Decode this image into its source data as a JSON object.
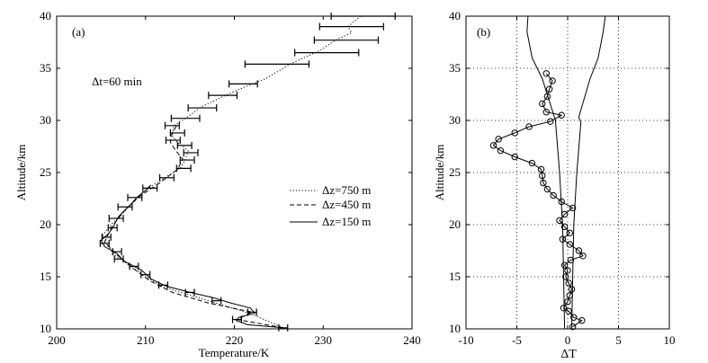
{
  "chart_data": [
    {
      "panel_label": "(a)",
      "type": "line",
      "xlabel": "Temperature/K",
      "ylabel": "Altitude/km",
      "xlim": [
        200,
        240
      ],
      "ylim": [
        10,
        40
      ],
      "xticks": [
        "200",
        "210",
        "220",
        "230",
        "240"
      ],
      "yticks": [
        "10",
        "15",
        "20",
        "25",
        "30",
        "35",
        "40"
      ],
      "grid": false,
      "annotation": "Δt=60 min",
      "legend_position": "right",
      "series": [
        {
          "name": "Δz=750 m",
          "style": "dotted",
          "points": [
            [
              225.5,
              10.1
            ],
            [
              222.0,
              11.4
            ],
            [
              219.0,
              12.2
            ],
            [
              215.5,
              13.1
            ],
            [
              212.0,
              14.0
            ],
            [
              210.0,
              15.0
            ],
            [
              208.0,
              16.2
            ],
            [
              206.6,
              17.0
            ],
            [
              205.6,
              18.2
            ],
            [
              205.2,
              19.0
            ],
            [
              206.0,
              19.9
            ],
            [
              206.8,
              20.6
            ],
            [
              207.6,
              21.2
            ],
            [
              208.5,
              22.1
            ],
            [
              209.2,
              22.7
            ],
            [
              210.5,
              23.6
            ],
            [
              212.2,
              24.5
            ],
            [
              214.0,
              25.5
            ],
            [
              214.5,
              26.3
            ],
            [
              214.8,
              27.1
            ],
            [
              213.7,
              27.8
            ],
            [
              213.0,
              28.5
            ],
            [
              213.2,
              29.5
            ],
            [
              214.5,
              30.2
            ],
            [
              216.3,
              31.3
            ],
            [
              218.5,
              32.2
            ],
            [
              220.6,
              33.0
            ],
            [
              223.5,
              34.0
            ],
            [
              226.5,
              35.5
            ],
            [
              229.6,
              36.7
            ],
            [
              231.6,
              37.8
            ],
            [
              233.2,
              38.4
            ],
            [
              232.8,
              39.0
            ],
            [
              233.5,
              39.5
            ],
            [
              234.2,
              40.0
            ]
          ]
        },
        {
          "name": "Δz=450 m",
          "style": "dashed",
          "points": [
            [
              225.5,
              10.1
            ],
            [
              220.3,
              10.9
            ],
            [
              222.0,
              11.6
            ],
            [
              217.0,
              12.5
            ],
            [
              213.0,
              13.5
            ],
            [
              210.5,
              14.6
            ],
            [
              208.3,
              16.0
            ],
            [
              206.8,
              17.1
            ],
            [
              205.4,
              18.3
            ],
            [
              206.2,
              19.8
            ],
            [
              207.6,
              21.3
            ],
            [
              209.3,
              22.7
            ],
            [
              211.6,
              24.0
            ],
            [
              213.6,
              25.3
            ],
            [
              214.2,
              26.3
            ],
            [
              213.4,
              27.1
            ],
            [
              212.8,
              27.9
            ],
            [
              213.0,
              28.8
            ],
            [
              213.6,
              29.6
            ]
          ]
        },
        {
          "name": "Δz=150 m",
          "style": "solid",
          "points": [
            [
              225.5,
              10.1
            ],
            [
              221.5,
              10.4
            ],
            [
              220.2,
              10.8
            ],
            [
              220.5,
              11.1
            ],
            [
              222.3,
              11.5
            ],
            [
              221.8,
              12.0
            ],
            [
              219.5,
              12.5
            ],
            [
              217.6,
              13.0
            ],
            [
              215.0,
              13.5
            ],
            [
              212.3,
              14.1
            ],
            [
              210.6,
              14.8
            ],
            [
              209.6,
              15.6
            ],
            [
              207.6,
              16.5
            ],
            [
              206.8,
              17.2
            ],
            [
              205.4,
              17.9
            ],
            [
              205.0,
              18.5
            ],
            [
              205.8,
              19.1
            ],
            [
              206.4,
              19.8
            ],
            [
              206.6,
              20.2
            ],
            [
              207.0,
              20.8
            ],
            [
              207.8,
              21.5
            ],
            [
              208.4,
              22.0
            ],
            [
              209.0,
              22.6
            ],
            [
              210.0,
              23.3
            ],
            [
              210.6,
              23.8
            ]
          ]
        }
      ],
      "error_bars": [
        [
          225.5,
          10.1
        ],
        [
          220.3,
          10.9
        ],
        [
          222.0,
          11.6
        ],
        [
          218.0,
          12.7
        ],
        [
          215.0,
          13.5
        ],
        [
          212.0,
          14.2
        ],
        [
          210.0,
          15.2
        ],
        [
          208.7,
          16.0
        ],
        [
          207.0,
          16.7
        ],
        [
          206.8,
          17.4
        ],
        [
          205.4,
          18.2
        ],
        [
          205.6,
          18.8
        ],
        [
          206.3,
          19.7
        ],
        [
          206.7,
          20.6
        ],
        [
          207.7,
          21.7
        ],
        [
          208.8,
          22.6
        ],
        [
          210.5,
          23.5
        ],
        [
          212.4,
          24.5
        ],
        [
          214.3,
          25.4
        ],
        [
          214.7,
          26.2
        ],
        [
          215.1,
          26.9
        ],
        [
          214.4,
          27.6
        ],
        [
          213.1,
          28.1
        ],
        [
          213.6,
          28.8
        ],
        [
          213.0,
          29.5
        ],
        [
          214.5,
          30.2
        ],
        [
          216.4,
          31.2
        ],
        [
          218.7,
          32.4
        ],
        [
          221.0,
          33.5
        ],
        [
          224.8,
          35.4
        ],
        [
          230.4,
          36.5
        ],
        [
          232.6,
          37.7
        ],
        [
          233.2,
          39.0
        ],
        [
          234.5,
          40.0
        ]
      ]
    },
    {
      "panel_label": "(b)",
      "type": "line",
      "xlabel": "ΔT",
      "ylabel": "Altitude/km",
      "xlim": [
        -10,
        10
      ],
      "ylim": [
        10,
        40
      ],
      "xticks": [
        "-10",
        "-5",
        "0",
        "5",
        "10"
      ],
      "yticks": [
        "10",
        "15",
        "20",
        "25",
        "30",
        "35",
        "40"
      ],
      "grid": true,
      "grid_style": "dotted",
      "series": [
        {
          "name": "ΔT",
          "style": "solid-circle-markers",
          "points": [
            [
              0.5,
              10.2
            ],
            [
              1.4,
              10.8
            ],
            [
              0.6,
              11.1
            ],
            [
              0.1,
              11.7
            ],
            [
              -0.4,
              12.0
            ],
            [
              0.0,
              12.6
            ],
            [
              0.2,
              13.2
            ],
            [
              0.4,
              13.8
            ],
            [
              0.1,
              14.4
            ],
            [
              -0.2,
              15.0
            ],
            [
              0.0,
              15.6
            ],
            [
              -0.3,
              16.1
            ],
            [
              0.3,
              16.6
            ],
            [
              1.5,
              17.0
            ],
            [
              1.1,
              17.5
            ],
            [
              0.2,
              18.1
            ],
            [
              -0.5,
              18.6
            ],
            [
              0.2,
              19.2
            ],
            [
              -0.3,
              19.8
            ],
            [
              -0.8,
              20.4
            ],
            [
              -0.3,
              21.0
            ],
            [
              0.5,
              21.6
            ],
            [
              -0.6,
              22.2
            ],
            [
              -1.4,
              22.8
            ],
            [
              -2.0,
              23.4
            ],
            [
              -2.4,
              24.0
            ],
            [
              -2.5,
              24.7
            ],
            [
              -2.6,
              25.3
            ],
            [
              -3.5,
              25.9
            ],
            [
              -5.2,
              26.5
            ],
            [
              -6.6,
              27.1
            ],
            [
              -7.3,
              27.6
            ],
            [
              -6.8,
              28.2
            ],
            [
              -5.2,
              28.8
            ],
            [
              -3.8,
              29.4
            ],
            [
              -1.7,
              29.9
            ],
            [
              -0.6,
              30.5
            ],
            [
              -2.1,
              30.8
            ],
            [
              -2.5,
              31.6
            ],
            [
              -2.0,
              32.3
            ],
            [
              -1.8,
              33.0
            ],
            [
              -1.5,
              33.8
            ],
            [
              -2.1,
              34.5
            ]
          ]
        }
      ],
      "envelope_left": [
        [
          -0.3,
          10.0
        ],
        [
          -0.4,
          15.0
        ],
        [
          -0.5,
          20.0
        ],
        [
          -0.8,
          25.0
        ],
        [
          -1.2,
          30.0
        ],
        [
          -2.5,
          34.0
        ],
        [
          -3.5,
          36.0
        ],
        [
          -4.0,
          38.5
        ],
        [
          -3.9,
          40.0
        ]
      ],
      "envelope_right": [
        [
          0.4,
          10.0
        ],
        [
          0.5,
          15.0
        ],
        [
          0.6,
          20.0
        ],
        [
          0.9,
          25.0
        ],
        [
          1.3,
          29.8
        ],
        [
          1.1,
          30.3
        ],
        [
          1.3,
          31.0
        ],
        [
          2.2,
          34.0
        ],
        [
          3.0,
          36.0
        ],
        [
          3.5,
          38.5
        ],
        [
          3.7,
          40.0
        ]
      ]
    }
  ],
  "legend_entries": [
    "Δz=750 m",
    "Δz=450 m",
    "Δz=150 m"
  ]
}
